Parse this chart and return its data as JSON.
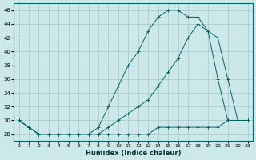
{
  "xlabel": "Humidex (Indice chaleur)",
  "bg_color": "#cce8e8",
  "grid_color": "#aacccc",
  "line_color": "#006666",
  "xlim": [
    -0.5,
    23.5
  ],
  "ylim": [
    27,
    47
  ],
  "yticks": [
    28,
    30,
    32,
    34,
    36,
    38,
    40,
    42,
    44,
    46
  ],
  "xticks": [
    0,
    1,
    2,
    3,
    4,
    5,
    6,
    7,
    8,
    9,
    10,
    11,
    12,
    13,
    14,
    15,
    16,
    17,
    18,
    19,
    20,
    21,
    22,
    23
  ],
  "series1_x": [
    0,
    1,
    2,
    3,
    4,
    5,
    6,
    7,
    8,
    9,
    10,
    11,
    12,
    13,
    14,
    15,
    16,
    17,
    18,
    19,
    20,
    21,
    22,
    23
  ],
  "series1_y": [
    30,
    29,
    28,
    28,
    28,
    28,
    28,
    28,
    28,
    28,
    28,
    28,
    28,
    28,
    29,
    29,
    29,
    29,
    29,
    29,
    29,
    30,
    30,
    30
  ],
  "series2_x": [
    0,
    1,
    2,
    3,
    4,
    5,
    6,
    7,
    8,
    9,
    10,
    11,
    12,
    13,
    14,
    15,
    16,
    17,
    18,
    19,
    20,
    21,
    22,
    23
  ],
  "series2_y": [
    30,
    29,
    28,
    28,
    28,
    28,
    28,
    28,
    28,
    29,
    30,
    31,
    32,
    33,
    35,
    37,
    39,
    42,
    44,
    43,
    42,
    36,
    30,
    30
  ],
  "series3_x": [
    0,
    1,
    2,
    3,
    4,
    5,
    6,
    7,
    8,
    9,
    10,
    11,
    12,
    13,
    14,
    15,
    16,
    17,
    18,
    19,
    20,
    21,
    22,
    23
  ],
  "series3_y": [
    30,
    29,
    28,
    28,
    28,
    28,
    28,
    28,
    29,
    32,
    35,
    38,
    40,
    43,
    45,
    46,
    46,
    45,
    45,
    43,
    36,
    30,
    30,
    30
  ]
}
